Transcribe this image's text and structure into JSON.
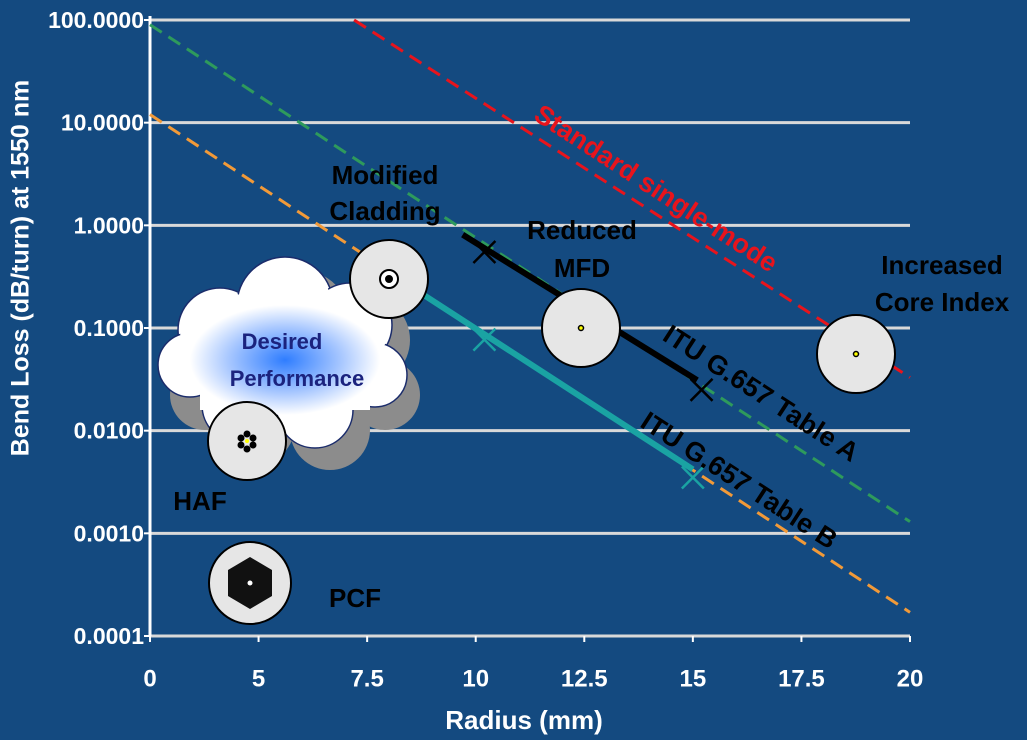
{
  "chart_data": {
    "type": "line",
    "x_label": "Radius (mm)",
    "y_label": "Bend Loss (dB/turn) at 1550 nm",
    "y_scale": "log",
    "grid": true,
    "xlim": [
      0,
      20
    ],
    "xticks": [
      0,
      5,
      7.5,
      10,
      12.5,
      15,
      17.5,
      20
    ],
    "ylim": [
      0.0001,
      100
    ],
    "yticks": [
      {
        "value": 100,
        "label": "100.0000"
      },
      {
        "value": 10,
        "label": "10.0000"
      },
      {
        "value": 1,
        "label": "1.0000"
      },
      {
        "value": 0.1,
        "label": "0.1000"
      },
      {
        "value": 0.01,
        "label": "0.0100"
      },
      {
        "value": 0.001,
        "label": "0.0010"
      },
      {
        "value": 0.0001,
        "label": "0.0001"
      }
    ],
    "series": [
      {
        "name": "Standard single-mode",
        "color": "#e8141c",
        "style": "dashed",
        "x": [
          7.2,
          20
        ],
        "values": [
          100,
          0.033
        ]
      },
      {
        "name": "ITU G.657 Table A",
        "color": "#2e9a5c",
        "style": "dashed",
        "x": [
          0,
          20
        ],
        "values": [
          90,
          0.0013
        ]
      },
      {
        "name": "ITU G.657 Table B",
        "color": "#f29a38",
        "style": "dashed",
        "x": [
          0,
          20
        ],
        "values": [
          12,
          0.00017
        ]
      },
      {
        "color": "#000000",
        "style": "solid",
        "x": [
          9.7,
          15.1
        ],
        "values": [
          0.81,
          0.031
        ]
      },
      {
        "color": "#000000",
        "style": "markers",
        "x": [
          10.2,
          15.2
        ],
        "values": [
          0.55,
          0.025
        ]
      },
      {
        "color": "#1aa3a3",
        "style": "solid",
        "x": [
          8.8,
          15
        ],
        "values": [
          0.21,
          0.0042
        ]
      },
      {
        "color": "#1aa3a3",
        "style": "markers",
        "x": [
          10.2,
          15
        ],
        "values": [
          0.077,
          0.0035
        ]
      }
    ],
    "annotations": [
      {
        "lines": [
          "Modified",
          "Cladding"
        ]
      },
      {
        "lines": [
          "Reduced",
          "MFD"
        ]
      },
      {
        "lines": [
          "Increased",
          "Core Index"
        ]
      },
      {
        "lines": [
          "Desired",
          "Performance"
        ]
      },
      {
        "lines": [
          "HAF"
        ]
      },
      {
        "lines": [
          "PCF"
        ]
      }
    ]
  }
}
